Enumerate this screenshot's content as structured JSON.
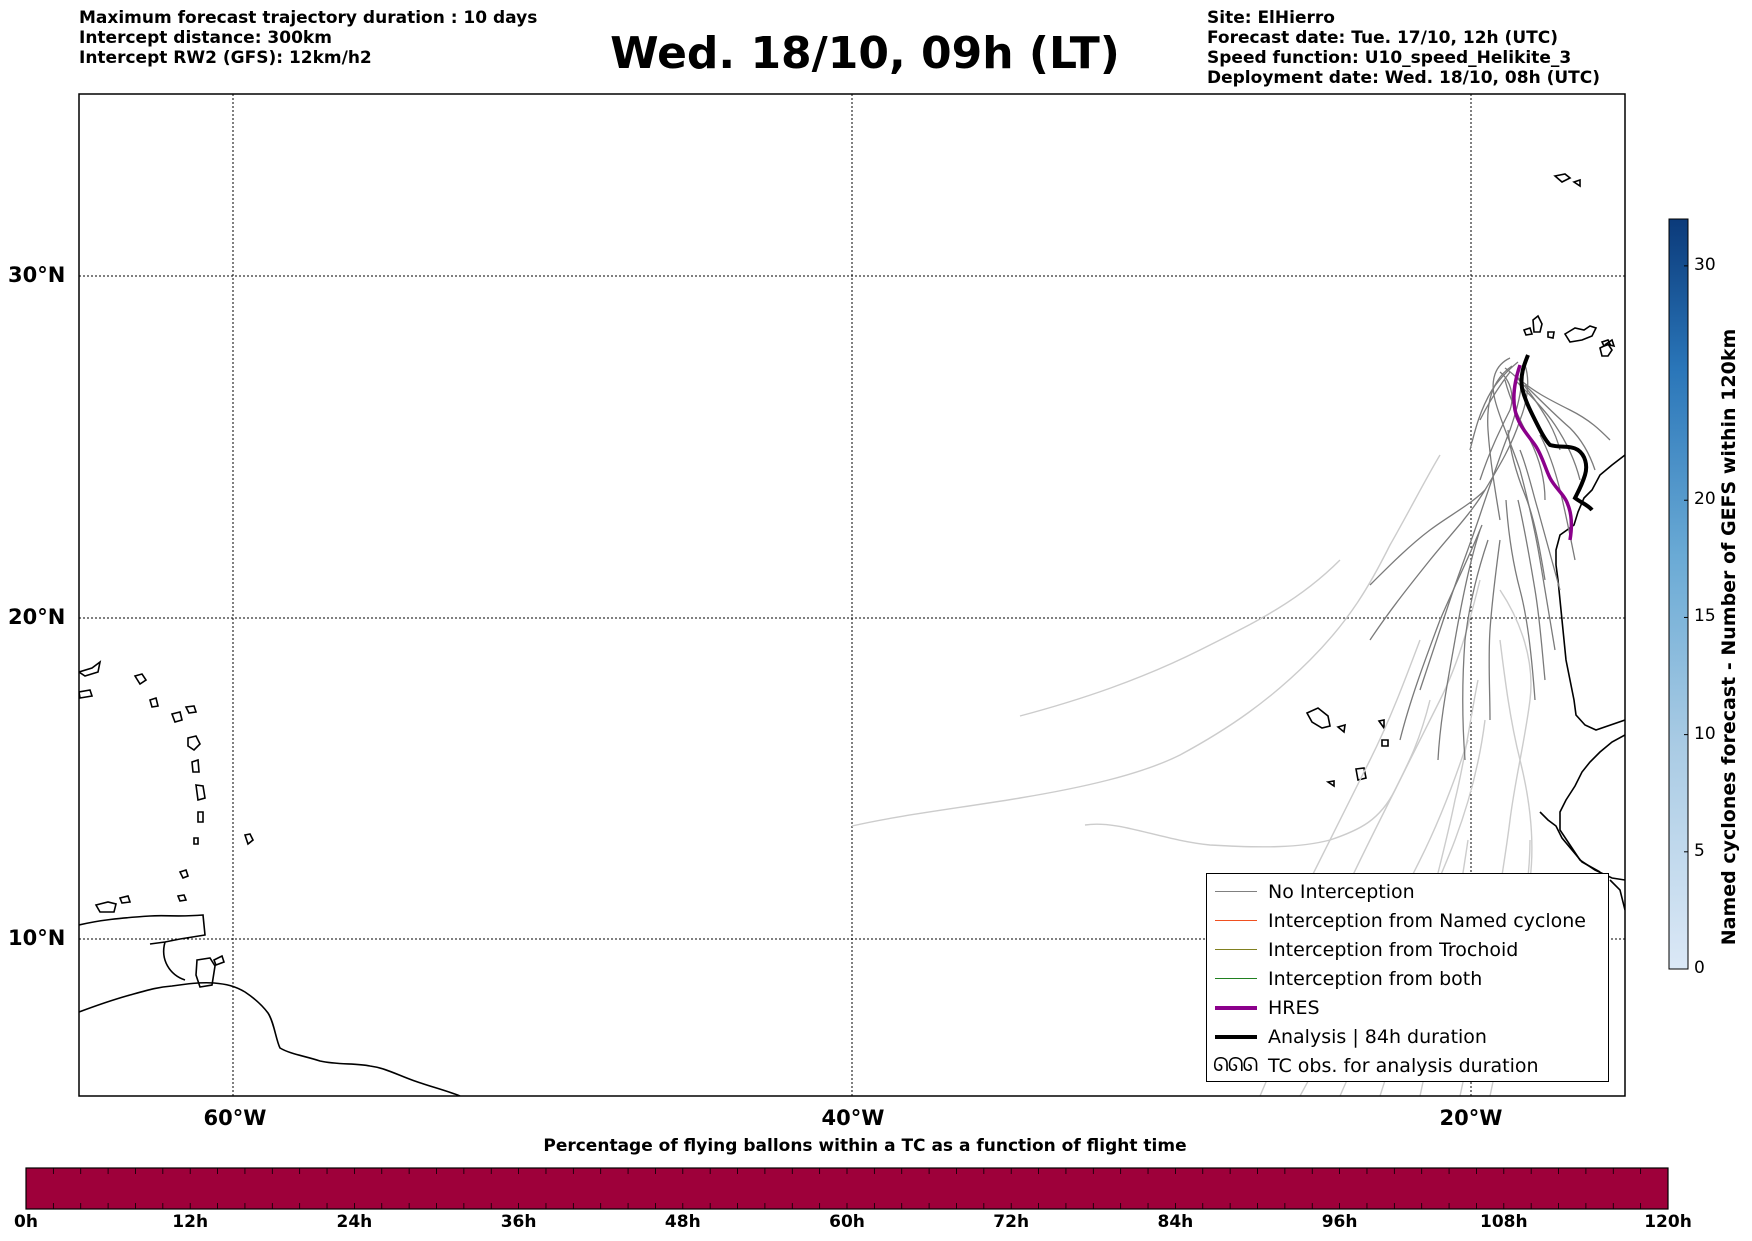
{
  "header": {
    "left_lines": [
      "Maximum forecast trajectory duration : 10 days",
      "Intercept distance: 300km",
      "Intercept RW2 (GFS):  12km/h2"
    ],
    "title": "Wed. 18/10, 09h (LT)",
    "right_lines": [
      "Site: ElHierro",
      "Forecast date: Tue. 17/10, 12h (UTC)",
      "Speed function: U10_speed_Helikite_3",
      "Deployment date: Wed. 18/10, 08h (UTC)"
    ]
  },
  "map": {
    "lat_labels": [
      "30°N",
      "20°N",
      "10°N"
    ],
    "lon_labels": [
      "60°W",
      "40°W",
      "20°W"
    ],
    "extent": {
      "lon_min": -65,
      "lon_max": -15,
      "lat_min": 5.3,
      "lat_max": 35.3
    }
  },
  "legend": {
    "items": [
      {
        "label": "No Interception",
        "color": "#808080",
        "style": "thin"
      },
      {
        "label": "Interception from Named cyclone",
        "color": "#f05020",
        "style": "thin"
      },
      {
        "label": "Interception from Trochoid",
        "color": "#808020",
        "style": "thin"
      },
      {
        "label": "Interception from both",
        "color": "#208020",
        "style": "thin"
      },
      {
        "label": "HRES",
        "color": "#8b008b",
        "style": "thick"
      },
      {
        "label": "Analysis | 84h duration",
        "color": "#000000",
        "style": "thick"
      },
      {
        "label": "TC obs. for analysis duration",
        "color": "#000000",
        "style": "symbol",
        "symbol": "ᘏᘏᘏ"
      }
    ]
  },
  "colorbar_vertical": {
    "title": "Named cyclones forecast - Number of GEFS within 120km",
    "ticks": [
      "0",
      "5",
      "10",
      "15",
      "20",
      "30"
    ],
    "tick_values": [
      0,
      5,
      10,
      15,
      20,
      30
    ],
    "max": 32
  },
  "colorbar_horizontal": {
    "title": "Percentage of flying ballons within a TC as a function of flight time",
    "ticks": [
      "0h",
      "12h",
      "24h",
      "36h",
      "48h",
      "60h",
      "72h",
      "84h",
      "96h",
      "108h",
      "120h"
    ],
    "fill_color": "#9e003a"
  }
}
